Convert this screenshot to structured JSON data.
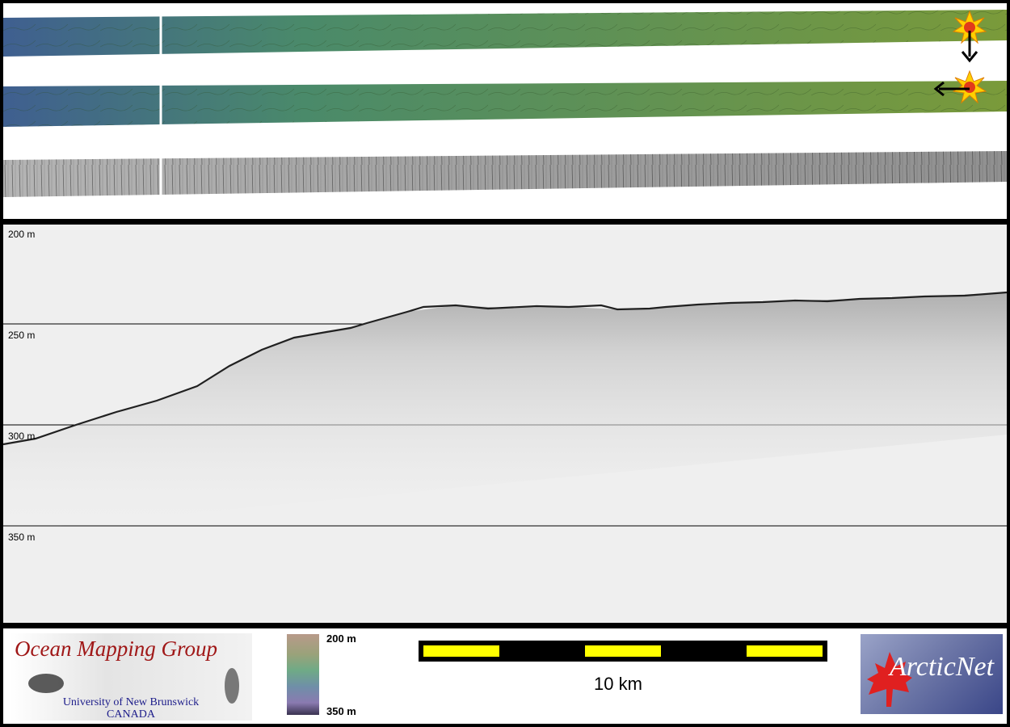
{
  "profile": {
    "depth_labels": [
      "200 m",
      "250 m",
      "300 m",
      "350 m"
    ]
  },
  "footer": {
    "ocean_mapping": {
      "title": "Ocean Mapping Group",
      "university": "University of New Brunswick",
      "country": "CANADA"
    },
    "colorbar": {
      "top_label": "200 m",
      "bottom_label": "350 m"
    },
    "scale": {
      "label": "10 km",
      "colors": {
        "bar": "#000000",
        "segment": "#ffff00"
      }
    },
    "arcticnet_logo": {
      "text": "ArcticNet",
      "leaf_color": "#e02020"
    }
  },
  "icons": {
    "sun": "sun-burst-icon",
    "down_arrow": "arrow-down-icon",
    "left_arrow": "arrow-left-icon"
  },
  "colors": {
    "swath_start": "#3f5f90",
    "swath_mid": "#4a8a6a",
    "swath_end": "#7a9a3a",
    "seafloor_line": "#202020",
    "profile_bg": "#efefef"
  }
}
